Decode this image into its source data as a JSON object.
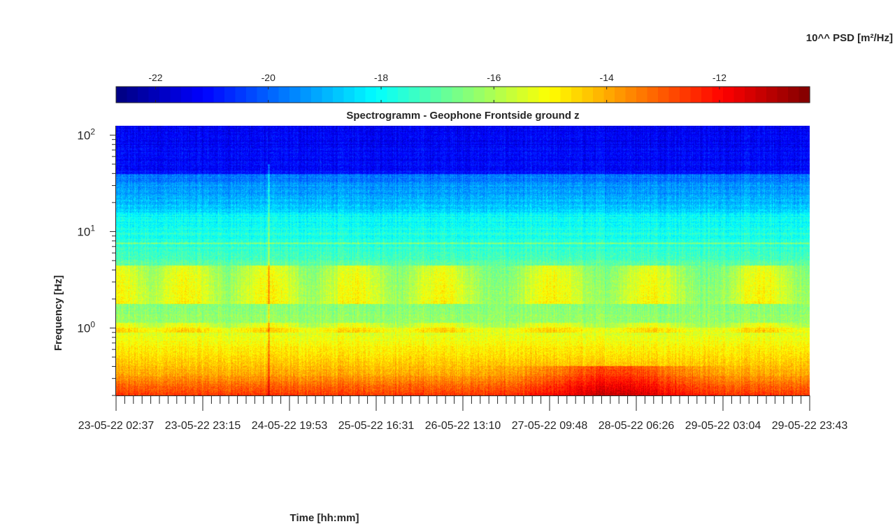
{
  "chart_data": {
    "type": "heatmap",
    "title": "Spectrogramm - Geophone Frontside ground z",
    "xlabel": "Time [hh:mm]",
    "ylabel": "Frequency [Hz]",
    "colorbar_label": "10^^ PSD [m²/Hz]",
    "colormap": "jet",
    "colorbar_range": [
      -22.7,
      -10.4
    ],
    "colorbar_ticks": [
      {
        "value": -22,
        "label": "-22"
      },
      {
        "value": -20,
        "label": "-20"
      },
      {
        "value": -18,
        "label": "-18"
      },
      {
        "value": -16,
        "label": "-16"
      },
      {
        "value": -14,
        "label": "-14"
      },
      {
        "value": -12,
        "label": "-12"
      }
    ],
    "y_scale": "log",
    "ylim": [
      0.2,
      125
    ],
    "y_ticks": [
      {
        "value": 1,
        "base": "10",
        "exp": "0"
      },
      {
        "value": 10,
        "base": "10",
        "exp": "1"
      },
      {
        "value": 100,
        "base": "10",
        "exp": "2"
      }
    ],
    "x_ticks": [
      "23-05-22 02:37",
      "23-05-22 23:15",
      "24-05-22 19:53",
      "25-05-22 16:31",
      "26-05-22 13:10",
      "27-05-22 09:48",
      "28-05-22 06:26",
      "29-05-22 03:04",
      "29-05-22 23:43"
    ],
    "x_minor_ticks_per_interval": 10,
    "grid": false,
    "colorbar_position": "top"
  }
}
